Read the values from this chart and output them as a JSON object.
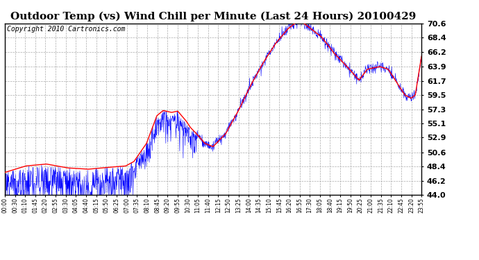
{
  "title": "Outdoor Temp (vs) Wind Chill per Minute (Last 24 Hours) 20100429",
  "copyright": "Copyright 2010 Cartronics.com",
  "y_ticks": [
    44.0,
    46.2,
    48.4,
    50.6,
    52.9,
    55.1,
    57.3,
    59.5,
    61.7,
    63.9,
    66.2,
    68.4,
    70.6
  ],
  "x_tick_labels": [
    "00:00",
    "00:30",
    "01:10",
    "01:45",
    "02:20",
    "02:55",
    "03:30",
    "04:05",
    "04:40",
    "05:15",
    "05:50",
    "06:25",
    "07:00",
    "07:35",
    "08:10",
    "08:45",
    "09:20",
    "09:55",
    "10:30",
    "11:05",
    "11:40",
    "12:15",
    "12:50",
    "13:25",
    "14:00",
    "14:35",
    "15:10",
    "15:45",
    "16:20",
    "16:55",
    "17:30",
    "18:05",
    "18:40",
    "19:15",
    "19:50",
    "20:25",
    "21:00",
    "21:35",
    "22:10",
    "22:45",
    "23:20",
    "23:55"
  ],
  "ylim": [
    44.0,
    70.6
  ],
  "background_color": "#ffffff",
  "plot_bg_color": "#ffffff",
  "grid_color": "#aaaaaa",
  "blue_color": "#0000ff",
  "red_color": "#ff0000",
  "title_fontsize": 11,
  "copyright_fontsize": 7
}
